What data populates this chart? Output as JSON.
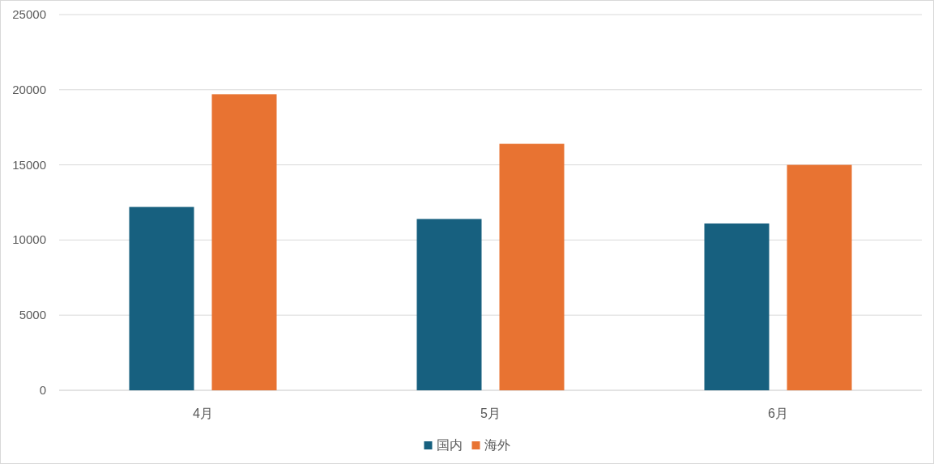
{
  "chart_data": {
    "type": "bar",
    "categories": [
      "4月",
      "5月",
      "6月"
    ],
    "series": [
      {
        "name": "国内",
        "color": "#17607f",
        "values": [
          12200,
          11400,
          11100
        ]
      },
      {
        "name": "海外",
        "color": "#e87332",
        "values": [
          19700,
          16400,
          15000
        ]
      }
    ],
    "ylim": [
      0,
      25000
    ],
    "yticks": [
      0,
      5000,
      10000,
      15000,
      20000,
      25000
    ],
    "grid": "y",
    "legend": "bottom"
  }
}
